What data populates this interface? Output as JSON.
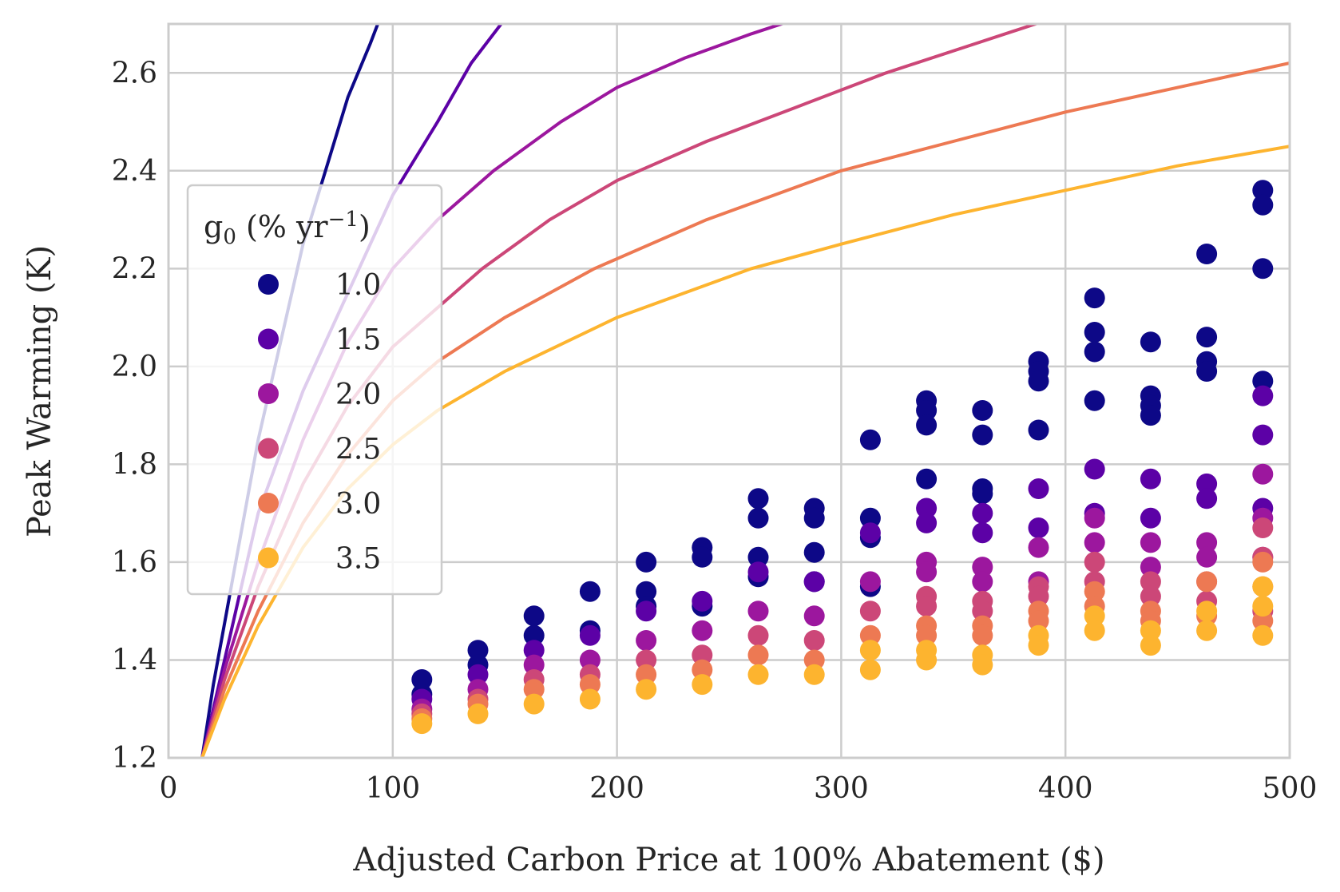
{
  "chart_data": {
    "type": "scatter",
    "xlabel": "Adjusted Carbon Price at 100% Abatement ($)",
    "ylabel": "Peak Warming (K)",
    "xlim": [
      0,
      500
    ],
    "ylim": [
      1.2,
      2.7
    ],
    "x_ticks": [
      "0",
      "100",
      "200",
      "300",
      "400",
      "500"
    ],
    "y_ticks": [
      "1.2",
      "1.4",
      "1.6",
      "1.8",
      "2.0",
      "2.2",
      "2.4",
      "2.6"
    ],
    "grid": true,
    "legend": {
      "title_main": "g",
      "title_sub": "0",
      "title_rest_a": " (% yr",
      "title_sup": "−1",
      "title_rest_b": ")",
      "placement": "upper-left"
    },
    "series": [
      {
        "name": "1.0",
        "color": "#0d0887",
        "curve": {
          "x": [
            15,
            20,
            30,
            40,
            50,
            60,
            70,
            80,
            90,
            95
          ],
          "y": [
            1.2,
            1.35,
            1.6,
            1.85,
            2.05,
            2.25,
            2.4,
            2.55,
            2.66,
            2.72
          ]
        },
        "points": [
          [
            113,
            1.36
          ],
          [
            113,
            1.33
          ],
          [
            138,
            1.42
          ],
          [
            138,
            1.39
          ],
          [
            163,
            1.49
          ],
          [
            163,
            1.45
          ],
          [
            188,
            1.54
          ],
          [
            188,
            1.46
          ],
          [
            213,
            1.6
          ],
          [
            213,
            1.54
          ],
          [
            213,
            1.51
          ],
          [
            238,
            1.63
          ],
          [
            238,
            1.61
          ],
          [
            238,
            1.51
          ],
          [
            263,
            1.73
          ],
          [
            263,
            1.69
          ],
          [
            263,
            1.61
          ],
          [
            263,
            1.57
          ],
          [
            288,
            1.71
          ],
          [
            288,
            1.69
          ],
          [
            288,
            1.62
          ],
          [
            288,
            1.56
          ],
          [
            313,
            1.85
          ],
          [
            313,
            1.69
          ],
          [
            313,
            1.65
          ],
          [
            313,
            1.55
          ],
          [
            338,
            1.93
          ],
          [
            338,
            1.91
          ],
          [
            338,
            1.88
          ],
          [
            338,
            1.77
          ],
          [
            363,
            1.91
          ],
          [
            363,
            1.86
          ],
          [
            363,
            1.75
          ],
          [
            363,
            1.74
          ],
          [
            388,
            2.01
          ],
          [
            388,
            1.99
          ],
          [
            388,
            1.97
          ],
          [
            388,
            1.87
          ],
          [
            413,
            2.14
          ],
          [
            413,
            2.07
          ],
          [
            413,
            2.03
          ],
          [
            413,
            1.93
          ],
          [
            438,
            2.05
          ],
          [
            438,
            1.94
          ],
          [
            438,
            1.92
          ],
          [
            438,
            1.9
          ],
          [
            463,
            2.23
          ],
          [
            463,
            2.06
          ],
          [
            463,
            2.01
          ],
          [
            463,
            1.99
          ],
          [
            488,
            2.36
          ],
          [
            488,
            2.33
          ],
          [
            488,
            2.2
          ],
          [
            488,
            1.97
          ]
        ]
      },
      {
        "name": "1.5",
        "color": "#5c01a6",
        "curve": {
          "x": [
            15,
            25,
            40,
            60,
            80,
            100,
            120,
            135,
            150
          ],
          "y": [
            1.2,
            1.4,
            1.7,
            1.95,
            2.15,
            2.35,
            2.5,
            2.62,
            2.71
          ]
        },
        "points": [
          [
            113,
            1.32
          ],
          [
            138,
            1.37
          ],
          [
            163,
            1.42
          ],
          [
            188,
            1.45
          ],
          [
            213,
            1.5
          ],
          [
            238,
            1.52
          ],
          [
            263,
            1.58
          ],
          [
            288,
            1.56
          ],
          [
            313,
            1.66
          ],
          [
            338,
            1.71
          ],
          [
            338,
            1.68
          ],
          [
            363,
            1.7
          ],
          [
            363,
            1.66
          ],
          [
            388,
            1.75
          ],
          [
            388,
            1.67
          ],
          [
            413,
            1.79
          ],
          [
            413,
            1.7
          ],
          [
            438,
            1.77
          ],
          [
            438,
            1.69
          ],
          [
            463,
            1.76
          ],
          [
            463,
            1.73
          ],
          [
            488,
            1.94
          ],
          [
            488,
            1.86
          ],
          [
            488,
            1.71
          ]
        ]
      },
      {
        "name": "2.0",
        "color": "#9c179e",
        "curve": {
          "x": [
            15,
            25,
            40,
            60,
            80,
            100,
            120,
            145,
            175,
            200,
            230,
            260,
            280
          ],
          "y": [
            1.2,
            1.38,
            1.6,
            1.85,
            2.05,
            2.2,
            2.3,
            2.4,
            2.5,
            2.57,
            2.63,
            2.68,
            2.71
          ]
        },
        "points": [
          [
            113,
            1.3
          ],
          [
            138,
            1.34
          ],
          [
            163,
            1.39
          ],
          [
            188,
            1.4
          ],
          [
            213,
            1.44
          ],
          [
            238,
            1.46
          ],
          [
            263,
            1.5
          ],
          [
            288,
            1.49
          ],
          [
            313,
            1.56
          ],
          [
            338,
            1.6
          ],
          [
            338,
            1.58
          ],
          [
            363,
            1.59
          ],
          [
            363,
            1.56
          ],
          [
            388,
            1.63
          ],
          [
            388,
            1.56
          ],
          [
            413,
            1.69
          ],
          [
            413,
            1.64
          ],
          [
            438,
            1.64
          ],
          [
            438,
            1.59
          ],
          [
            463,
            1.64
          ],
          [
            463,
            1.61
          ],
          [
            488,
            1.78
          ],
          [
            488,
            1.69
          ],
          [
            488,
            1.61
          ]
        ]
      },
      {
        "name": "2.5",
        "color": "#cc4778",
        "curve": {
          "x": [
            15,
            25,
            40,
            60,
            80,
            100,
            120,
            140,
            170,
            200,
            240,
            280,
            320,
            360,
            400
          ],
          "y": [
            1.2,
            1.36,
            1.55,
            1.76,
            1.92,
            2.04,
            2.12,
            2.2,
            2.3,
            2.38,
            2.46,
            2.53,
            2.6,
            2.66,
            2.72
          ]
        },
        "points": [
          [
            113,
            1.29
          ],
          [
            138,
            1.32
          ],
          [
            163,
            1.36
          ],
          [
            188,
            1.37
          ],
          [
            213,
            1.4
          ],
          [
            238,
            1.41
          ],
          [
            263,
            1.45
          ],
          [
            288,
            1.44
          ],
          [
            313,
            1.5
          ],
          [
            338,
            1.53
          ],
          [
            338,
            1.51
          ],
          [
            363,
            1.52
          ],
          [
            363,
            1.5
          ],
          [
            388,
            1.55
          ],
          [
            388,
            1.53
          ],
          [
            413,
            1.6
          ],
          [
            413,
            1.56
          ],
          [
            438,
            1.56
          ],
          [
            438,
            1.53
          ],
          [
            463,
            1.56
          ],
          [
            463,
            1.52
          ],
          [
            488,
            1.67
          ],
          [
            488,
            1.61
          ],
          [
            488,
            1.5
          ]
        ]
      },
      {
        "name": "3.0",
        "color": "#ed7953",
        "curve": {
          "x": [
            15,
            25,
            40,
            60,
            80,
            100,
            120,
            150,
            190,
            240,
            300,
            350,
            400,
            450,
            500
          ],
          "y": [
            1.2,
            1.34,
            1.5,
            1.68,
            1.82,
            1.93,
            2.01,
            2.1,
            2.2,
            2.3,
            2.4,
            2.46,
            2.52,
            2.57,
            2.62
          ]
        },
        "points": [
          [
            113,
            1.28
          ],
          [
            138,
            1.31
          ],
          [
            163,
            1.34
          ],
          [
            188,
            1.35
          ],
          [
            213,
            1.37
          ],
          [
            238,
            1.38
          ],
          [
            263,
            1.41
          ],
          [
            288,
            1.4
          ],
          [
            313,
            1.45
          ],
          [
            338,
            1.47
          ],
          [
            338,
            1.45
          ],
          [
            363,
            1.47
          ],
          [
            363,
            1.45
          ],
          [
            388,
            1.5
          ],
          [
            388,
            1.48
          ],
          [
            413,
            1.54
          ],
          [
            413,
            1.51
          ],
          [
            438,
            1.5
          ],
          [
            438,
            1.48
          ],
          [
            463,
            1.56
          ],
          [
            463,
            1.49
          ],
          [
            488,
            1.6
          ],
          [
            488,
            1.55
          ],
          [
            488,
            1.48
          ]
        ]
      },
      {
        "name": "3.5",
        "color": "#fdb42f",
        "curve": {
          "x": [
            15,
            25,
            40,
            60,
            80,
            100,
            120,
            150,
            200,
            260,
            300,
            350,
            400,
            450,
            500
          ],
          "y": [
            1.2,
            1.32,
            1.47,
            1.63,
            1.75,
            1.84,
            1.91,
            1.99,
            2.1,
            2.2,
            2.25,
            2.31,
            2.36,
            2.41,
            2.45
          ]
        },
        "points": [
          [
            113,
            1.27
          ],
          [
            138,
            1.29
          ],
          [
            163,
            1.31
          ],
          [
            188,
            1.32
          ],
          [
            213,
            1.34
          ],
          [
            238,
            1.35
          ],
          [
            263,
            1.37
          ],
          [
            288,
            1.37
          ],
          [
            313,
            1.38
          ],
          [
            313,
            1.42
          ],
          [
            338,
            1.42
          ],
          [
            338,
            1.4
          ],
          [
            363,
            1.41
          ],
          [
            363,
            1.39
          ],
          [
            388,
            1.45
          ],
          [
            388,
            1.43
          ],
          [
            413,
            1.49
          ],
          [
            413,
            1.46
          ],
          [
            438,
            1.46
          ],
          [
            438,
            1.43
          ],
          [
            463,
            1.5
          ],
          [
            463,
            1.46
          ],
          [
            488,
            1.55
          ],
          [
            488,
            1.51
          ],
          [
            488,
            1.45
          ]
        ]
      }
    ]
  }
}
